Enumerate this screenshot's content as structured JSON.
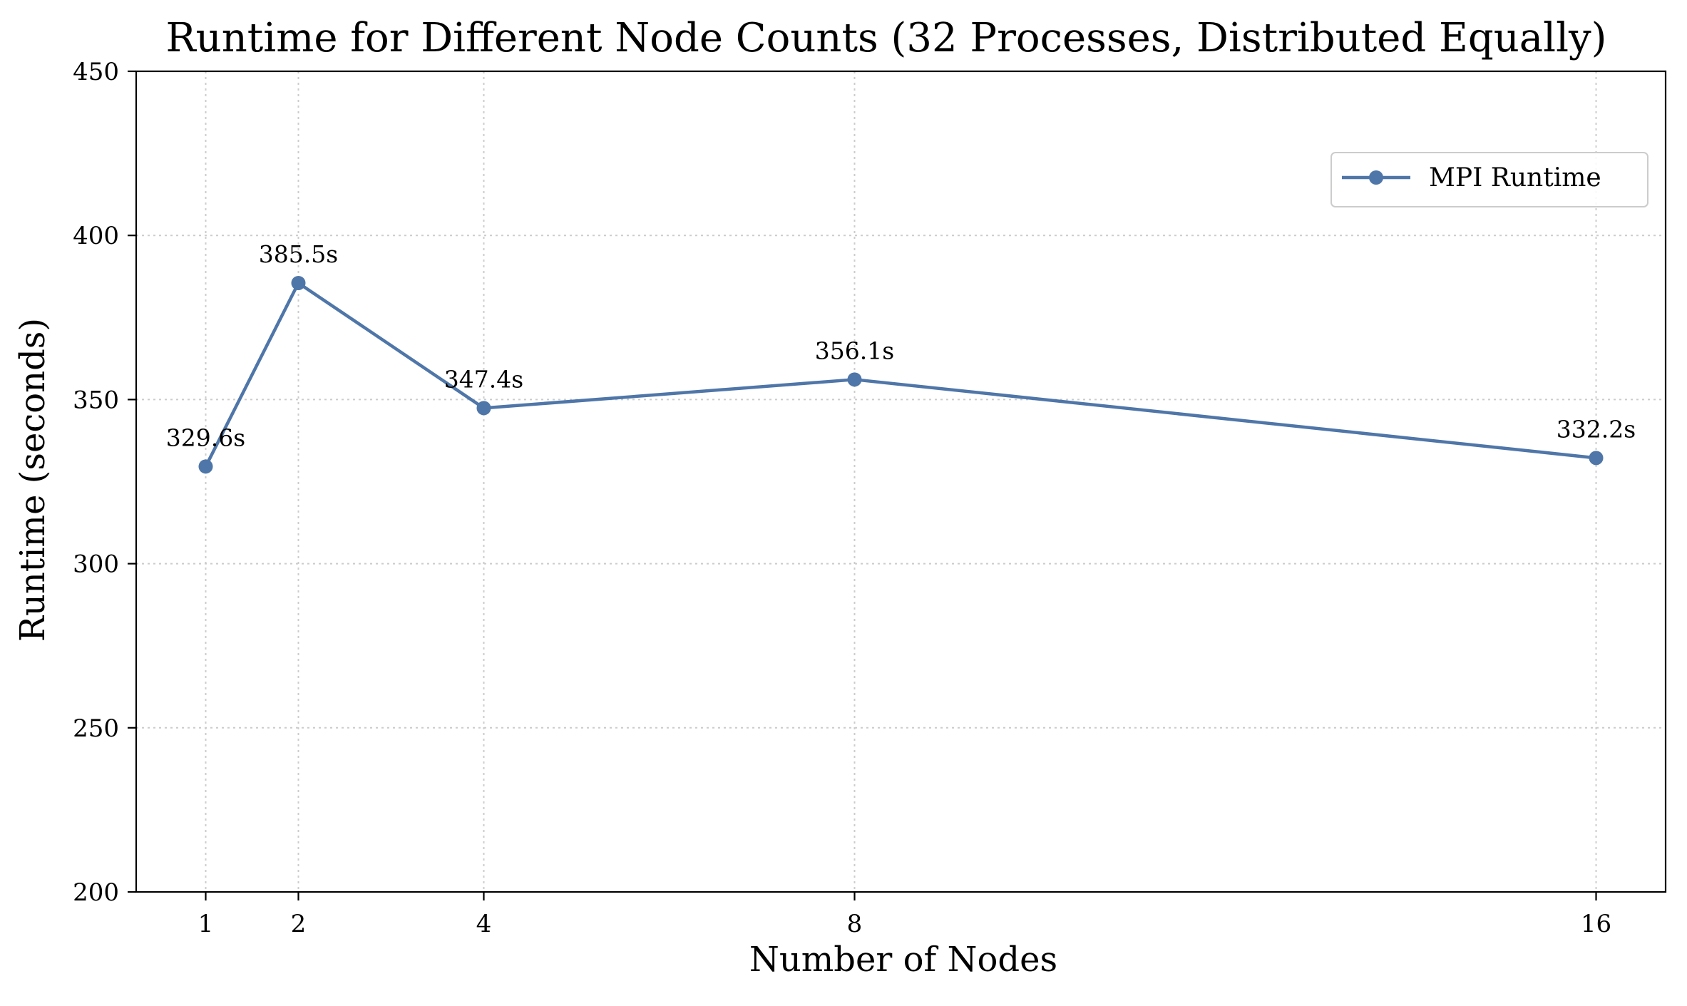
{
  "chart_data": {
    "type": "line",
    "title": "Runtime for Different Node Counts (32 Processes, Distributed Equally)",
    "xlabel": "Number of Nodes",
    "ylabel": "Runtime (seconds)",
    "x": [
      1,
      2,
      4,
      8,
      16
    ],
    "x_ticks": [
      "1",
      "2",
      "4",
      "8",
      "16"
    ],
    "xlim": [
      0.25,
      16.75
    ],
    "ylim": [
      200,
      450
    ],
    "y_ticks": [
      "200",
      "250",
      "300",
      "350",
      "400",
      "450"
    ],
    "grid": true,
    "legend_position": "upper-right",
    "series": [
      {
        "name": "MPI Runtime",
        "color": "#4f76a8",
        "values": [
          329.6,
          385.5,
          347.4,
          356.1,
          332.2
        ],
        "labels": [
          "329.6s",
          "385.5s",
          "347.4s",
          "356.1s",
          "332.2s"
        ]
      }
    ]
  }
}
